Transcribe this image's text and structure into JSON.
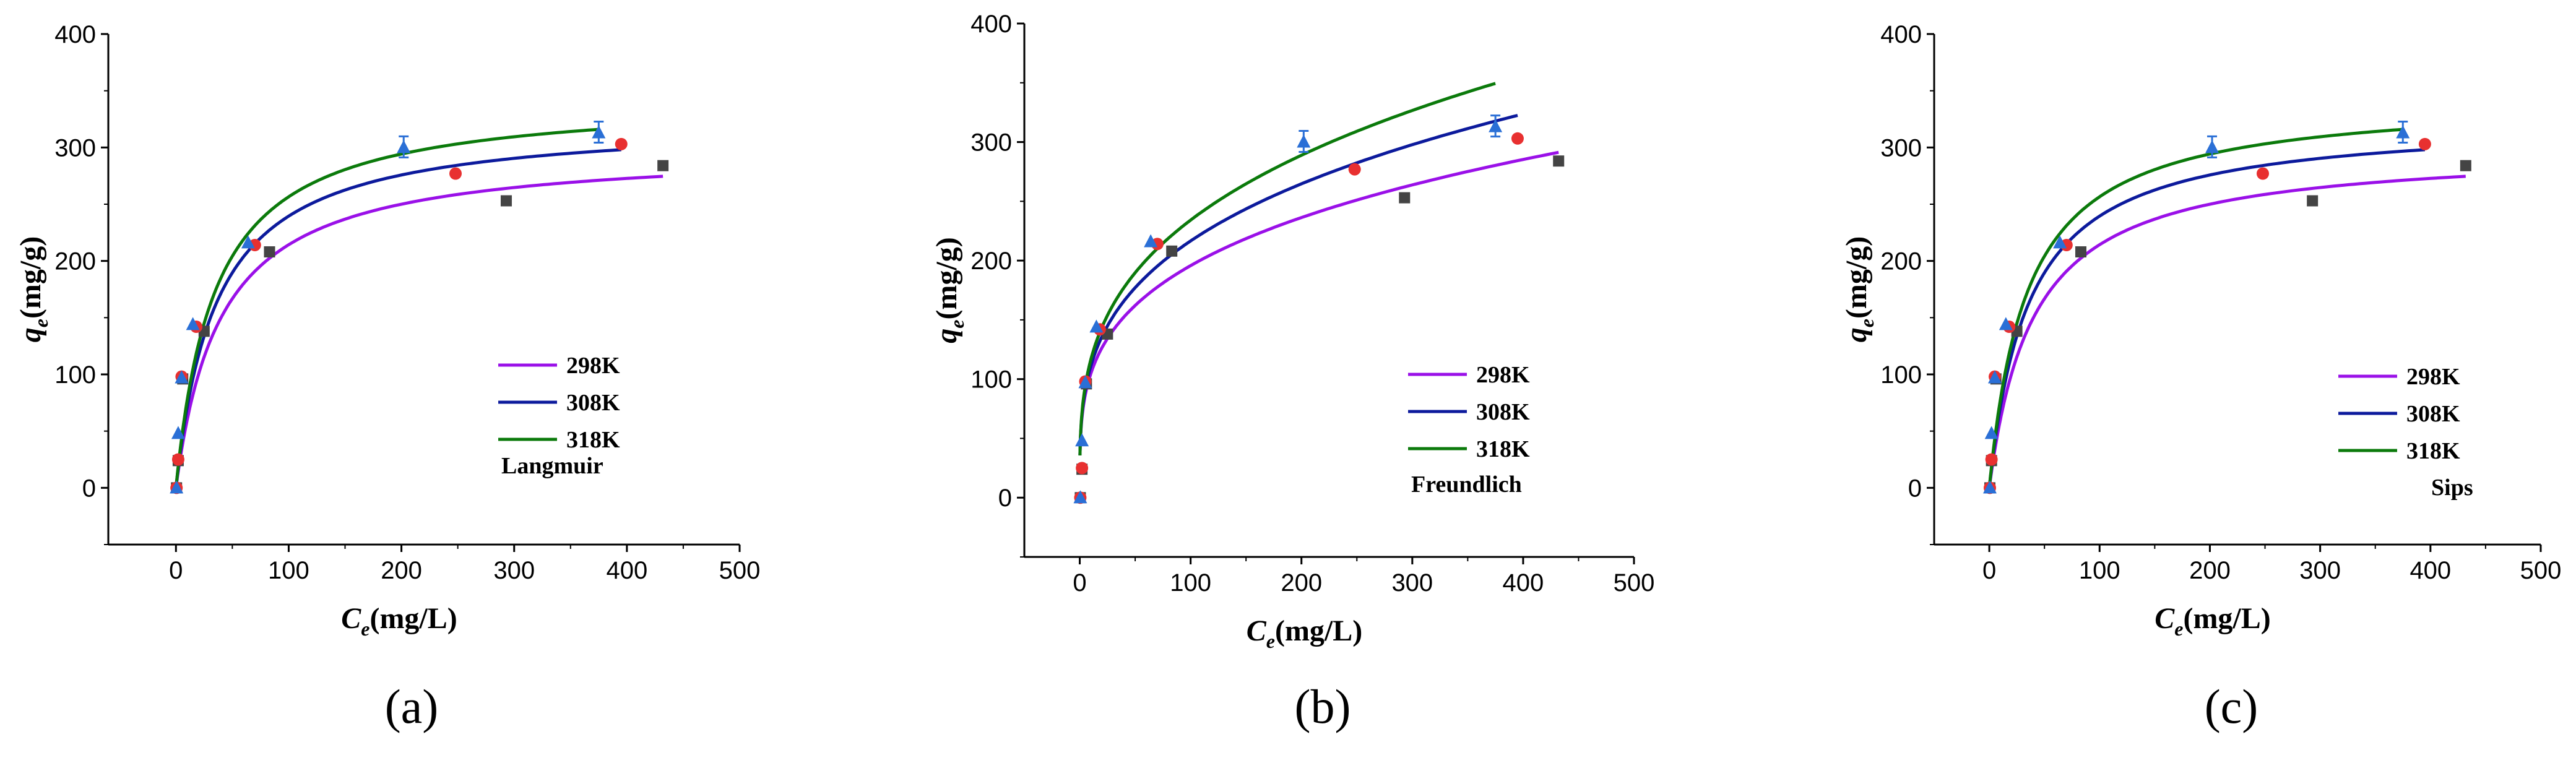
{
  "colors": {
    "298K": "#9a10e8",
    "308K": "#0c1a9c",
    "318K": "#0b7a0b",
    "pts_298K": "#444444",
    "pts_308K": "#e83030",
    "pts_318K": "#2a6fd6",
    "axis": "#000000"
  },
  "chart_data": [
    {
      "type": "scatter",
      "panel_label": "(a)",
      "model": "Langmuir",
      "title": "",
      "xlabel": {
        "main": "C",
        "sub": "e",
        "rest": "(mg/L)"
      },
      "ylabel": {
        "main": "q",
        "sub": "e",
        "rest": "(mg/g)"
      },
      "xlim": [
        -60,
        500
      ],
      "ylim": [
        -50,
        400
      ],
      "xticks": [
        "0",
        "100",
        "200",
        "300",
        "400",
        "500"
      ],
      "yticks": [
        "0",
        "100",
        "200",
        "300",
        "400"
      ],
      "legend": [
        "298K",
        "308K",
        "318K"
      ],
      "legend_position": "center-right",
      "fit_params": {
        "298K": {
          "qm": 300,
          "kl": 0.025,
          "xmax": 432
        },
        "308K": {
          "qm": 325,
          "kl": 0.028,
          "xmax": 395
        },
        "318K": {
          "qm": 345,
          "kl": 0.029,
          "xmax": 375
        }
      },
      "series": [
        {
          "name": "298K",
          "x": [
            0.5,
            2,
            6,
            25,
            83,
            293,
            432
          ],
          "y": [
            0,
            24,
            96,
            138,
            208,
            253,
            284
          ]
        },
        {
          "name": "308K",
          "x": [
            0.5,
            2,
            5,
            18,
            70,
            248,
            395
          ],
          "y": [
            0,
            25,
            98,
            142,
            214,
            277,
            303
          ]
        },
        {
          "name": "318K",
          "x": [
            0.5,
            2,
            5,
            15,
            64,
            202,
            375
          ],
          "y": [
            0,
            48,
            97,
            144,
            216,
            300,
            313
          ]
        }
      ]
    },
    {
      "type": "scatter",
      "panel_label": "(b)",
      "model": "Freundlich",
      "title": "",
      "xlabel": {
        "main": "C",
        "sub": "e",
        "rest": "(mg/L)"
      },
      "ylabel": {
        "main": "q",
        "sub": "e",
        "rest": "(mg/g)"
      },
      "xlim": [
        -50,
        500
      ],
      "ylim": [
        -50,
        400
      ],
      "xticks": [
        "0",
        "100",
        "200",
        "300",
        "400",
        "500"
      ],
      "yticks": [
        "0",
        "100",
        "200",
        "300",
        "400"
      ],
      "legend": [
        "298K",
        "308K",
        "318K"
      ],
      "legend_position": "center-right",
      "fit_params": {
        "298K": {
          "kf": 56,
          "n": 3.68,
          "xmax": 432
        },
        "308K": {
          "kf": 57,
          "n": 3.45,
          "xmax": 395
        },
        "318K": {
          "kf": 58,
          "n": 3.3,
          "xmax": 375
        }
      },
      "series": [
        {
          "name": "298K",
          "x": [
            0.5,
            2,
            6,
            25,
            83,
            293,
            432
          ],
          "y": [
            0,
            24,
            96,
            138,
            208,
            253,
            284
          ]
        },
        {
          "name": "308K",
          "x": [
            0.5,
            2,
            5,
            18,
            70,
            248,
            395
          ],
          "y": [
            0,
            25,
            98,
            142,
            214,
            277,
            303
          ]
        },
        {
          "name": "318K",
          "x": [
            0.5,
            2,
            5,
            15,
            64,
            202,
            375
          ],
          "y": [
            0,
            48,
            97,
            144,
            216,
            300,
            313
          ]
        }
      ]
    },
    {
      "type": "scatter",
      "panel_label": "(c)",
      "model": "Sips",
      "title": "",
      "xlabel": {
        "main": "C",
        "sub": "e",
        "rest": "(mg/L)"
      },
      "ylabel": {
        "main": "q",
        "sub": "e",
        "rest": "(mg/g)"
      },
      "xlim": [
        -50,
        500
      ],
      "ylim": [
        -50,
        400
      ],
      "xticks": [
        "0",
        "100",
        "200",
        "300",
        "400",
        "500"
      ],
      "yticks": [
        "0",
        "100",
        "200",
        "300",
        "400"
      ],
      "legend": [
        "298K",
        "308K",
        "318K"
      ],
      "legend_position": "center-right",
      "fit_params": {
        "298K": {
          "qm": 300,
          "kl": 0.025,
          "xmax": 432
        },
        "308K": {
          "qm": 325,
          "kl": 0.028,
          "xmax": 395
        },
        "318K": {
          "qm": 345,
          "kl": 0.029,
          "xmax": 375
        }
      },
      "series": [
        {
          "name": "298K",
          "x": [
            0.5,
            2,
            6,
            25,
            83,
            293,
            432
          ],
          "y": [
            0,
            24,
            96,
            138,
            208,
            253,
            284
          ]
        },
        {
          "name": "308K",
          "x": [
            0.5,
            2,
            5,
            18,
            70,
            248,
            395
          ],
          "y": [
            0,
            25,
            98,
            142,
            214,
            277,
            303
          ]
        },
        {
          "name": "318K",
          "x": [
            0.5,
            2,
            5,
            15,
            64,
            202,
            375
          ],
          "y": [
            0,
            48,
            97,
            144,
            216,
            300,
            313
          ]
        }
      ]
    }
  ]
}
